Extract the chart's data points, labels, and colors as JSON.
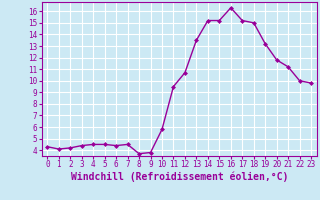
{
  "x": [
    0,
    1,
    2,
    3,
    4,
    5,
    6,
    7,
    8,
    9,
    10,
    11,
    12,
    13,
    14,
    15,
    16,
    17,
    18,
    19,
    20,
    21,
    22,
    23
  ],
  "y": [
    4.3,
    4.1,
    4.2,
    4.4,
    4.5,
    4.5,
    4.4,
    4.5,
    3.7,
    3.8,
    5.8,
    9.5,
    10.7,
    13.5,
    15.2,
    15.2,
    16.3,
    15.2,
    15.0,
    13.2,
    11.8,
    11.2,
    10.0,
    9.8
  ],
  "line_color": "#990099",
  "marker": "D",
  "marker_size": 2.0,
  "linewidth": 1.0,
  "xlabel": "Windchill (Refroidissement éolien,°C)",
  "xlabel_fontsize": 7,
  "xtick_labels": [
    "0",
    "1",
    "2",
    "3",
    "4",
    "5",
    "6",
    "7",
    "8",
    "9",
    "10",
    "11",
    "12",
    "13",
    "14",
    "15",
    "16",
    "17",
    "18",
    "19",
    "20",
    "21",
    "22",
    "23"
  ],
  "ylim": [
    3.5,
    16.8
  ],
  "xlim": [
    -0.5,
    23.5
  ],
  "bg_color": "#cce9f4",
  "grid_color": "#ffffff",
  "tick_color": "#990099",
  "tick_fontsize": 5.5,
  "tick_label_color": "#990099",
  "yticks": [
    4,
    5,
    6,
    7,
    8,
    9,
    10,
    11,
    12,
    13,
    14,
    15,
    16
  ]
}
